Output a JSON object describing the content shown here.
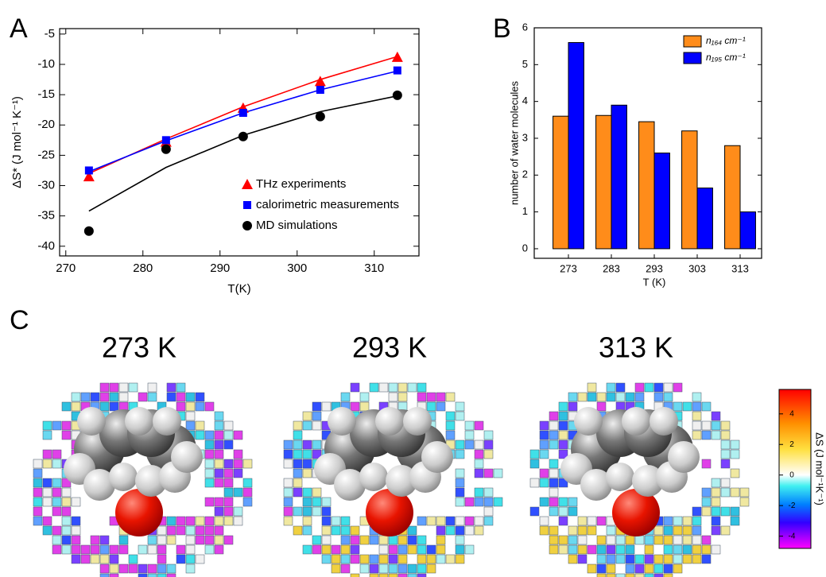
{
  "chart_data": [
    {
      "type": "scatter",
      "panel": "A",
      "ylabel": "ΔS* (J mol⁻¹ K⁻¹)",
      "xlabel": "T(K)",
      "x": [
        273,
        283,
        293,
        303,
        313
      ],
      "series": [
        {
          "name": "THz experiments",
          "color": "#ff0000",
          "marker": "triangle",
          "values": [
            -28.5,
            -22.8,
            -17.2,
            -12.8,
            -8.8
          ],
          "fit_values": [
            -28.0,
            -22.3,
            -17.0,
            -12.5,
            -8.7
          ]
        },
        {
          "name": "calorimetric measurements",
          "color": "#0000ff",
          "marker": "square",
          "values": [
            -27.5,
            -22.5,
            -18.0,
            -14.2,
            -11.0
          ],
          "fit_values": [
            -27.7,
            -22.6,
            -18.0,
            -14.2,
            -11.1
          ]
        },
        {
          "name": "MD simulations",
          "color": "#000000",
          "marker": "circle",
          "values": [
            -37.5,
            -24.0,
            -21.9,
            -18.6,
            -15.1
          ],
          "fit_values": [
            -34.2,
            -27.0,
            -21.7,
            -17.8,
            -15.2
          ]
        }
      ],
      "xlim": [
        269.2,
        315.8
      ],
      "xticks": [
        270,
        280,
        290,
        300,
        310
      ],
      "ylim": [
        -41.6,
        -4.1
      ],
      "yticks": [
        -40,
        -35,
        -30,
        -25,
        -20,
        -15,
        -10,
        -5
      ]
    },
    {
      "type": "bar",
      "panel": "B",
      "ylabel": "number of water molecules",
      "xlabel": "T (K)",
      "categories": [
        "273",
        "283",
        "293",
        "303",
        "313"
      ],
      "series": [
        {
          "name": "n₁₆₄ cm⁻¹",
          "color": "#ff8c1a",
          "values": [
            3.6,
            3.62,
            3.45,
            3.2,
            2.8
          ]
        },
        {
          "name": "n₁₉₅ cm⁻¹",
          "color": "#0000ff",
          "values": [
            5.6,
            3.9,
            2.6,
            1.65,
            1.0
          ]
        }
      ],
      "ylim": [
        -0.26,
        6.0
      ],
      "yticks": [
        0,
        1,
        2,
        3,
        4,
        5,
        6
      ],
      "legend": "upper right"
    },
    {
      "type": "colorbar",
      "panel": "C",
      "images": [
        "273 K",
        "293 K",
        "313 K"
      ],
      "clabel": "ΔS (J mol⁻¹K⁻¹)",
      "clim": [
        -4.8,
        5.6
      ],
      "cticks": [
        -4,
        -2,
        0,
        2,
        4
      ]
    }
  ]
}
